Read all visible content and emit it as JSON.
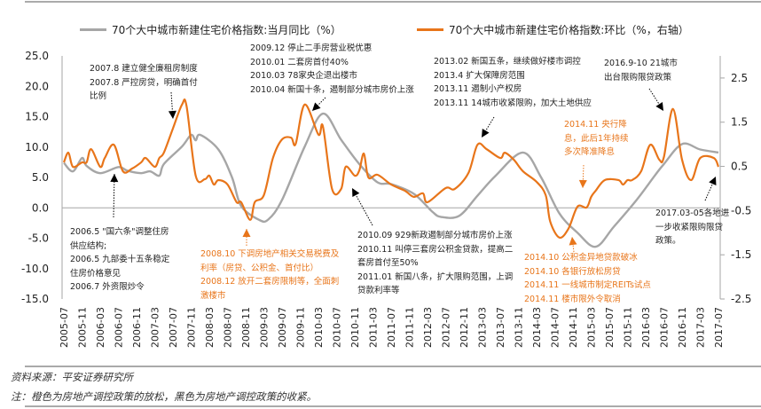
{
  "chart_data": {
    "type": "line",
    "title": "",
    "legend": [
      {
        "name": "70个大中城市新建住宅价格指数:当月同比（%）",
        "color": "#a6a6a6",
        "axis": "left"
      },
      {
        "name": "70个大中城市新建住宅价格指数:环比（%，右轴）",
        "color": "#e8751a",
        "axis": "right"
      }
    ],
    "legend_placement": "top",
    "y_left": {
      "range": [
        -15,
        25
      ],
      "ticks": [
        "25.0",
        "20.0",
        "15.0",
        "10.0",
        "5.0",
        "0.0",
        "-5.0",
        "-10.0",
        "-15.0"
      ]
    },
    "y_right": {
      "range": [
        -2.5,
        3.0
      ],
      "ticks": [
        "2.5",
        "1.5",
        "0.5",
        "-0.5",
        "-1.5",
        "-2.5"
      ]
    },
    "x_ticks": [
      "2005-07",
      "2005-11",
      "2006-03",
      "2006-07",
      "2006-11",
      "2007-03",
      "2007-07",
      "2007-11",
      "2008-03",
      "2008-07",
      "2008-11",
      "2009-03",
      "2009-07",
      "2009-11",
      "2010-03",
      "2010-07",
      "2010-11",
      "2011-03",
      "2011-07",
      "2011-11",
      "2012-03",
      "2012-07",
      "2012-11",
      "2013-03",
      "2013-07",
      "2013-11",
      "2014-03",
      "2014-07",
      "2014-11",
      "2015-03",
      "2015-07",
      "2015-11",
      "2016-03",
      "2016-07",
      "2016-11",
      "2017-03",
      "2017-07"
    ],
    "grid": false,
    "series": [
      {
        "name": "70个大中城市新建住宅价格指数:当月同比（%）",
        "axis": "left",
        "color": "#a6a6a6",
        "points": [
          [
            "2005-07",
            7.4
          ],
          [
            "2005-09",
            6.0
          ],
          [
            "2005-11",
            8.2
          ],
          [
            "2005-12",
            6.9
          ],
          [
            "2006-03",
            5.7
          ],
          [
            "2006-07",
            6.7
          ],
          [
            "2006-09",
            6.1
          ],
          [
            "2006-12",
            5.7
          ],
          [
            "2007-02",
            6.0
          ],
          [
            "2007-04",
            5.3
          ],
          [
            "2007-05",
            7.2
          ],
          [
            "2007-09",
            10.1
          ],
          [
            "2007-11",
            12.0
          ],
          [
            "2007-12",
            11.1
          ],
          [
            "2008-01",
            12.0
          ],
          [
            "2008-05",
            9.6
          ],
          [
            "2008-08",
            5.0
          ],
          [
            "2008-10",
            0.3
          ],
          [
            "2009-02",
            -2.0
          ],
          [
            "2009-04",
            -1.9
          ],
          [
            "2009-07",
            1.3
          ],
          [
            "2009-12",
            10.1
          ],
          [
            "2010-04",
            15.5
          ],
          [
            "2010-08",
            11.2
          ],
          [
            "2010-12",
            7.2
          ],
          [
            "2011-04",
            4.2
          ],
          [
            "2011-07",
            3.9
          ],
          [
            "2011-12",
            2.3
          ],
          [
            "2012-04",
            -0.6
          ],
          [
            "2012-06",
            -1.5
          ],
          [
            "2012-10",
            -1.3
          ],
          [
            "2013-02",
            2.0
          ],
          [
            "2013-06",
            5.3
          ],
          [
            "2013-12",
            9.1
          ],
          [
            "2014-04",
            5.0
          ],
          [
            "2014-08",
            -0.9
          ],
          [
            "2014-12",
            -4.1
          ],
          [
            "2015-04",
            -6.4
          ],
          [
            "2015-08",
            -3.1
          ],
          [
            "2016-01",
            1.3
          ],
          [
            "2016-05",
            5.3
          ],
          [
            "2016-07",
            7.2
          ],
          [
            "2016-11",
            10.5
          ],
          [
            "2017-03",
            9.6
          ],
          [
            "2017-07",
            9.1
          ]
        ]
      },
      {
        "name": "70个大中城市新建住宅价格指数:环比（%，右轴）",
        "axis": "right",
        "color": "#e8751a",
        "points": [
          [
            "2005-07",
            0.59
          ],
          [
            "2005-08",
            0.81
          ],
          [
            "2005-09",
            0.49
          ],
          [
            "2005-11",
            0.59
          ],
          [
            "2005-12",
            0.59
          ],
          [
            "2006-01",
            0.89
          ],
          [
            "2006-03",
            0.49
          ],
          [
            "2006-04",
            0.69
          ],
          [
            "2006-06",
            0.99
          ],
          [
            "2006-08",
            0.39
          ],
          [
            "2006-10",
            0.45
          ],
          [
            "2006-12",
            0.59
          ],
          [
            "2007-01",
            0.69
          ],
          [
            "2007-03",
            0.49
          ],
          [
            "2007-04",
            0.69
          ],
          [
            "2007-05",
            0.81
          ],
          [
            "2007-07",
            1.36
          ],
          [
            "2007-09",
            1.9
          ],
          [
            "2007-10",
            1.86
          ],
          [
            "2007-12",
            0.29
          ],
          [
            "2008-02",
            0.21
          ],
          [
            "2008-03",
            0.29
          ],
          [
            "2008-04",
            0.09
          ],
          [
            "2008-05",
            0.19
          ],
          [
            "2008-07",
            0.09
          ],
          [
            "2008-09",
            -0.31
          ],
          [
            "2008-10",
            -0.31
          ],
          [
            "2008-12",
            -0.71
          ],
          [
            "2009-01",
            -0.31
          ],
          [
            "2009-03",
            -0.15
          ],
          [
            "2009-05",
            0.69
          ],
          [
            "2009-07",
            1.11
          ],
          [
            "2009-09",
            1.15
          ],
          [
            "2009-10",
            1.01
          ],
          [
            "2009-12",
            1.9
          ],
          [
            "2010-03",
            1.22
          ],
          [
            "2010-04",
            1.4
          ],
          [
            "2010-06",
            -0.01
          ],
          [
            "2010-08",
            -0.01
          ],
          [
            "2010-09",
            0.49
          ],
          [
            "2010-11",
            0.29
          ],
          [
            "2010-12",
            0.41
          ],
          [
            "2011-01",
            0.79
          ],
          [
            "2011-02",
            0.25
          ],
          [
            "2011-04",
            0.31
          ],
          [
            "2011-07",
            0.09
          ],
          [
            "2011-10",
            -0.05
          ],
          [
            "2011-12",
            -0.19
          ],
          [
            "2012-02",
            -0.11
          ],
          [
            "2012-03",
            -0.31
          ],
          [
            "2012-07",
            0.01
          ],
          [
            "2012-09",
            -0.01
          ],
          [
            "2012-12",
            0.35
          ],
          [
            "2013-02",
            0.99
          ],
          [
            "2013-04",
            0.89
          ],
          [
            "2013-07",
            0.69
          ],
          [
            "2013-08",
            0.81
          ],
          [
            "2013-10",
            0.65
          ],
          [
            "2013-12",
            0.39
          ],
          [
            "2014-03",
            0.15
          ],
          [
            "2014-05",
            -0.15
          ],
          [
            "2014-06",
            -0.75
          ],
          [
            "2014-08",
            -1.11
          ],
          [
            "2014-10",
            -0.91
          ],
          [
            "2014-12",
            -0.41
          ],
          [
            "2015-02",
            -0.43
          ],
          [
            "2015-03",
            -0.19
          ],
          [
            "2015-04",
            -0.05
          ],
          [
            "2015-06",
            0.19
          ],
          [
            "2015-09",
            0.19
          ],
          [
            "2015-10",
            0.09
          ],
          [
            "2015-11",
            0.19
          ],
          [
            "2015-12",
            0.19
          ],
          [
            "2016-02",
            0.39
          ],
          [
            "2016-04",
            0.99
          ],
          [
            "2016-06",
            0.65
          ],
          [
            "2016-07",
            0.71
          ],
          [
            "2016-09",
            1.8
          ],
          [
            "2016-11",
            0.65
          ],
          [
            "2017-01",
            0.19
          ],
          [
            "2017-03",
            0.69
          ],
          [
            "2017-06",
            0.69
          ],
          [
            "2017-07",
            0.49
          ]
        ]
      }
    ],
    "annotations": {
      "a2007": [
        "2007.8  建立健全廉租房制度",
        "2007.8  严控房贷，明确首付",
        "比例"
      ],
      "a2009": [
        "2009.12 停止二手房营业税优惠",
        "2010.01 二套房首付40%",
        "2010.03 78家央企退出楼市",
        "2010.04 新国十条，遏制部分城市房价上涨"
      ],
      "a2013": [
        "2013.02 新国五条，继续做好楼市调控",
        "2013.4 扩大保障房范围",
        "2013.11 遏制小产权房",
        "2013.11 14城市收紧限购，加大土地供应"
      ],
      "a2016": [
        "2016.9-10 21城市",
        "出台限购限贷政策"
      ],
      "a2014b": [
        "2014.11 央行降",
        "息，此后1年持续",
        "多次降准降息"
      ],
      "a2006": [
        "2006.5 \"国六条\"调整住房",
        "供应结构;",
        "2006.5  九部委十五条稳定",
        "住房价格意见",
        "2006.7  外资限炒令"
      ],
      "a2008": [
        "2008.10 下调房地产相关交易税费及",
        "利率（房贷、公积金、首付比）",
        "2008.12 放开二套房限制等，全面刺",
        "激楼市"
      ],
      "a2010": [
        "2010.09 929新政遏制部分城市房价上涨",
        "2010.11 叫停三套房公积金贷款，提高二",
        "套房首付至50%",
        "2011.01 新国八条，扩大限购范围，上调",
        "贷款利率等"
      ],
      "a2014a": [
        "2014.10 公积金异地贷款破冰",
        "2014.10 各银行放松房贷",
        "2014.11 一线城市制定REITs试点",
        "2014.11 楼市限外令取消"
      ],
      "a2017": [
        "2017.03-05各地进",
        "一步收紧限购限贷",
        "政策。"
      ]
    }
  },
  "footer": {
    "source": "资料来源：平安证券研究所",
    "note": "注：橙色为房地产调控政策的放松，黑色为房地产调控政策的收紧。"
  }
}
